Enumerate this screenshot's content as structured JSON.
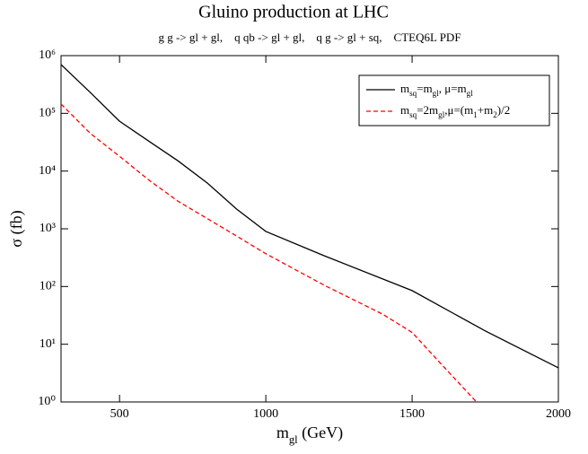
{
  "chart_data": {
    "type": "line",
    "title": "Gluino production at LHC",
    "subtitle": "g g -> gl + gl,    q qb -> gl + gl,    q g -> gl + sq,    CTEQ6L PDF",
    "x_label": "m_gl (GeV)",
    "y_label": "σ (fb)",
    "xlim": [
      300,
      2000
    ],
    "xticks": [
      500,
      1000,
      1500,
      2000
    ],
    "ylim": [
      1,
      1000000
    ],
    "log_y": true,
    "yticks": [
      {
        "value": 1,
        "label": "10⁰"
      },
      {
        "value": 10,
        "label": "10¹"
      },
      {
        "value": 100,
        "label": "10²"
      },
      {
        "value": 1000,
        "label": "10³"
      },
      {
        "value": 10000,
        "label": "10⁴"
      },
      {
        "value": 100000,
        "label": "10⁵"
      },
      {
        "value": 1000000,
        "label": "10⁶"
      }
    ],
    "legend": "top-right",
    "series": [
      {
        "name": "m_sq=m_gl, μ=m_gl",
        "color": "#000000",
        "dash": false,
        "x": [
          300,
          400,
          500,
          600,
          700,
          800,
          900,
          1000,
          1200,
          1500,
          1750,
          2000
        ],
        "values": [
          700000,
          230000,
          73000,
          33000,
          15000,
          6200,
          2200,
          900,
          340,
          85,
          17,
          3.9
        ]
      },
      {
        "name": "m_sq=2m_gl,μ=(m_1+m_2)/2",
        "color": "#ff0000",
        "dash": true,
        "x": [
          300,
          400,
          500,
          600,
          700,
          800,
          900,
          1000,
          1200,
          1400,
          1500,
          1600,
          1720
        ],
        "values": [
          145000,
          45000,
          18000,
          7000,
          3000,
          1500,
          750,
          370,
          105,
          33,
          16,
          4.5,
          1
        ]
      }
    ]
  }
}
